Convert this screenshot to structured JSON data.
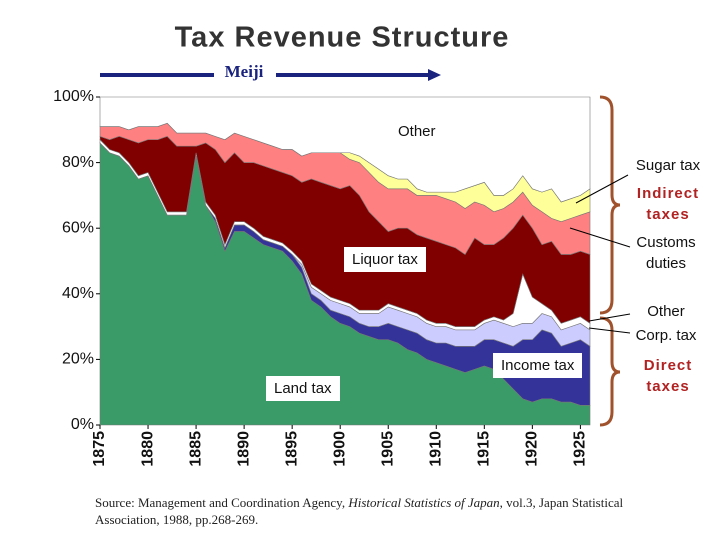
{
  "chart_data": {
    "type": "stacked-area",
    "title": "Tax Revenue Structure",
    "era_label": "Meiji",
    "groups": [
      "Indirect taxes",
      "Direct taxes"
    ],
    "source": {
      "before": "Source: Management and Coordination Agency, ",
      "book": "Historical Statistics of Japan",
      "after": ", vol.3, Japan Statistical Association, 1988, pp.268-269."
    },
    "x": [
      1875,
      1876,
      1877,
      1878,
      1879,
      1880,
      1881,
      1882,
      1883,
      1884,
      1885,
      1886,
      1887,
      1888,
      1889,
      1890,
      1891,
      1892,
      1893,
      1894,
      1895,
      1896,
      1897,
      1898,
      1899,
      1900,
      1901,
      1902,
      1903,
      1904,
      1905,
      1906,
      1907,
      1908,
      1909,
      1910,
      1911,
      1912,
      1913,
      1914,
      1915,
      1916,
      1917,
      1918,
      1919,
      1920,
      1921,
      1922,
      1923,
      1924,
      1925,
      1926
    ],
    "xlim": [
      1875,
      1926
    ],
    "xticks": [
      1875,
      1880,
      1885,
      1890,
      1895,
      1900,
      1905,
      1910,
      1915,
      1920,
      1925
    ],
    "ylim": [
      0,
      100
    ],
    "yticks": [
      {
        "value": 0,
        "label": "0%"
      },
      {
        "value": 20,
        "label": "20%"
      },
      {
        "value": 40,
        "label": "40%"
      },
      {
        "value": 60,
        "label": "60%"
      },
      {
        "value": 80,
        "label": "80%"
      },
      {
        "value": 100,
        "label": "100%"
      }
    ],
    "series": [
      {
        "name": "Land tax",
        "color": "#3a9a68",
        "values": [
          86,
          83,
          82,
          79,
          75,
          76,
          70,
          64,
          64,
          64,
          82,
          67,
          62,
          53,
          59,
          59,
          57,
          55,
          54,
          53,
          50,
          46,
          38,
          36,
          33,
          31,
          30,
          28,
          27,
          26,
          26,
          25,
          23,
          22,
          20,
          19,
          18,
          17,
          16,
          17,
          18,
          17,
          14,
          11,
          8,
          7,
          8,
          8,
          7,
          7,
          6,
          6
        ]
      },
      {
        "name": "Income tax",
        "color": "#333399",
        "values": [
          0,
          0,
          0,
          0,
          0,
          0,
          0,
          0,
          0,
          0,
          0,
          0,
          1,
          1,
          2,
          2,
          2,
          1.5,
          1.5,
          1.5,
          2,
          2,
          2,
          2,
          2,
          3,
          3,
          3,
          3,
          4,
          5,
          5,
          6,
          6,
          6,
          6,
          7,
          7,
          8,
          7,
          8,
          9,
          11,
          13,
          18,
          19,
          21,
          20,
          17,
          18,
          20,
          18
        ]
      },
      {
        "name": "Corp. tax",
        "color": "#ccccff",
        "values": [
          0,
          0,
          0,
          0,
          0,
          0,
          0,
          0,
          0,
          0,
          0,
          0,
          0,
          0,
          0,
          0,
          0,
          0,
          0,
          0,
          0,
          1,
          2,
          2,
          3,
          3,
          3,
          3,
          4,
          4,
          5,
          5,
          5,
          5,
          5,
          5,
          5,
          5,
          5,
          5,
          5,
          6,
          6,
          6,
          5,
          5,
          5,
          5,
          5,
          5,
          5,
          5
        ]
      },
      {
        "name": "Other",
        "color": "#ffffff",
        "values": [
          1,
          1,
          1,
          1,
          1,
          1,
          1,
          1,
          1,
          1,
          1,
          1,
          1,
          1,
          1,
          1,
          1,
          1,
          1,
          1,
          1,
          1,
          1,
          1,
          1,
          1,
          1,
          1,
          1,
          1,
          1,
          1,
          1,
          1,
          1,
          1,
          1,
          1,
          1,
          1,
          1,
          1,
          1,
          4,
          15,
          8,
          3,
          2,
          2,
          2,
          2,
          2
        ]
      },
      {
        "name": "Liquor tax",
        "color": "#800000",
        "values": [
          1,
          3,
          5,
          7,
          10,
          10,
          16,
          23,
          20,
          20,
          2,
          18,
          20,
          25,
          21,
          18,
          20,
          21.5,
          21.5,
          21.5,
          23,
          24,
          32,
          33,
          34,
          34,
          36,
          35,
          30,
          27,
          22,
          24,
          25,
          24,
          25,
          25,
          24,
          24,
          22,
          27,
          23,
          22,
          25,
          26,
          18,
          21,
          18,
          21,
          21,
          20,
          20,
          21
        ]
      },
      {
        "name": "Customs duties",
        "color": "#ff8080",
        "values": [
          3,
          4,
          3,
          3,
          5,
          4,
          4,
          4,
          4,
          4,
          4,
          3,
          4,
          7,
          6,
          8,
          7,
          7,
          7,
          7,
          8,
          8,
          8,
          9,
          10,
          11,
          8,
          10,
          12,
          12,
          13,
          12,
          12,
          12,
          13,
          14,
          14,
          14,
          14,
          11,
          12,
          10,
          9,
          8,
          7,
          7,
          10,
          7,
          10,
          11,
          11,
          13
        ]
      },
      {
        "name": "Sugar tax",
        "color": "#ffff99",
        "values": [
          0,
          0,
          0,
          0,
          0,
          0,
          0,
          0,
          0,
          0,
          0,
          0,
          0,
          0,
          0,
          0,
          0,
          0,
          0,
          0,
          0,
          0,
          0,
          0,
          0,
          0,
          2,
          2,
          3,
          4,
          4,
          3,
          3,
          2,
          1,
          1,
          2,
          3,
          6,
          5,
          7,
          5,
          4,
          4,
          5,
          5,
          6,
          9,
          6,
          6,
          6,
          7
        ]
      },
      {
        "name": "Other",
        "color": "#ffffff",
        "values": [
          9,
          9,
          9,
          10,
          9,
          9,
          9,
          8,
          11,
          11,
          11,
          11,
          12,
          13,
          11,
          12,
          13,
          14,
          15,
          16,
          16,
          18,
          17,
          17,
          17,
          17,
          17,
          18,
          20,
          22,
          24,
          25,
          25,
          28,
          29,
          29,
          29,
          29,
          28,
          27,
          26,
          30,
          30,
          28,
          24,
          28,
          29,
          28,
          32,
          31,
          30,
          28
        ]
      }
    ]
  }
}
